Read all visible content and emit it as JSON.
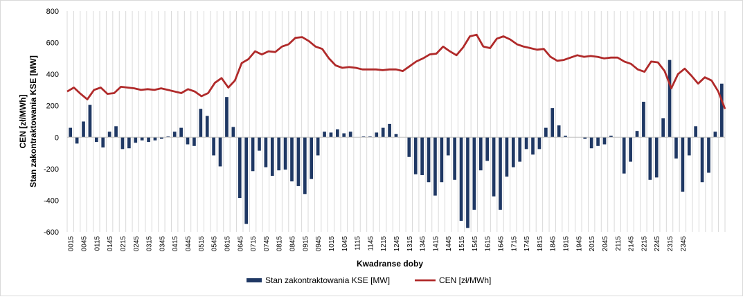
{
  "chart_data": {
    "type": "bar+line",
    "ylabel": "CEN  [zł/MWh]\nStan zakontraktowania KSE [MW]",
    "xlabel": "Kwadranse doby",
    "ylim": [
      -600,
      800
    ],
    "yticks": [
      -600,
      -400,
      -200,
      0,
      200,
      400,
      600,
      800
    ],
    "grid": "vertical",
    "legend_position": "bottom",
    "x_tick_labels": [
      "0015",
      "0045",
      "0115",
      "0145",
      "0215",
      "0245",
      "0315",
      "0345",
      "0415",
      "0445",
      "0515",
      "0545",
      "0615",
      "0645",
      "0715",
      "0745",
      "0815",
      "0845",
      "0915",
      "0945",
      "1015",
      "1045",
      "1115",
      "1145",
      "1215",
      "1245",
      "1315",
      "1345",
      "1415",
      "1445",
      "1515",
      "1545",
      "1615",
      "1645",
      "1715",
      "1745",
      "1815",
      "1845",
      "1915",
      "1945",
      "2015",
      "2045",
      "2115",
      "2145",
      "2215",
      "2245",
      "2315",
      "2345"
    ],
    "series": [
      {
        "name": "Stan zakontraktowania KSE [MW]",
        "type": "bar",
        "color": "#1f3864",
        "values": [
          60,
          -40,
          100,
          205,
          -30,
          -65,
          35,
          70,
          -75,
          -70,
          -35,
          -20,
          -30,
          -20,
          -10,
          5,
          35,
          60,
          -45,
          -55,
          180,
          135,
          -115,
          -185,
          255,
          65,
          -385,
          -550,
          -215,
          -85,
          -190,
          -245,
          -210,
          -205,
          -280,
          -310,
          -360,
          -265,
          -115,
          35,
          30,
          50,
          25,
          35,
          0,
          5,
          5,
          30,
          60,
          85,
          20,
          0,
          -125,
          -235,
          -240,
          -285,
          -370,
          -285,
          -115,
          -270,
          -530,
          -575,
          -460,
          -210,
          -150,
          -375,
          -460,
          -250,
          -190,
          -155,
          -75,
          -110,
          -75,
          60,
          185,
          75,
          10,
          0,
          0,
          -10,
          -70,
          -55,
          -45,
          10,
          0,
          -230,
          -155,
          40,
          225,
          -270,
          -255,
          120,
          490,
          -135,
          -345,
          -115,
          70,
          -285,
          -225,
          35,
          340
        ]
      },
      {
        "name": "CEN [zł/MWh]",
        "type": "line",
        "color": "#b02a2a",
        "values": [
          290,
          315,
          275,
          240,
          300,
          315,
          275,
          280,
          320,
          315,
          310,
          300,
          305,
          300,
          310,
          300,
          290,
          280,
          305,
          290,
          260,
          280,
          345,
          375,
          315,
          360,
          470,
          495,
          545,
          525,
          545,
          540,
          575,
          590,
          630,
          635,
          610,
          575,
          560,
          500,
          455,
          440,
          445,
          440,
          430,
          430,
          430,
          425,
          430,
          430,
          420,
          450,
          480,
          500,
          525,
          530,
          575,
          545,
          520,
          570,
          640,
          650,
          575,
          565,
          625,
          640,
          620,
          590,
          575,
          565,
          555,
          560,
          510,
          485,
          490,
          505,
          520,
          510,
          515,
          510,
          500,
          505,
          505,
          480,
          465,
          430,
          415,
          480,
          475,
          420,
          310,
          400,
          435,
          390,
          340,
          380,
          360,
          290,
          180
        ]
      }
    ]
  }
}
